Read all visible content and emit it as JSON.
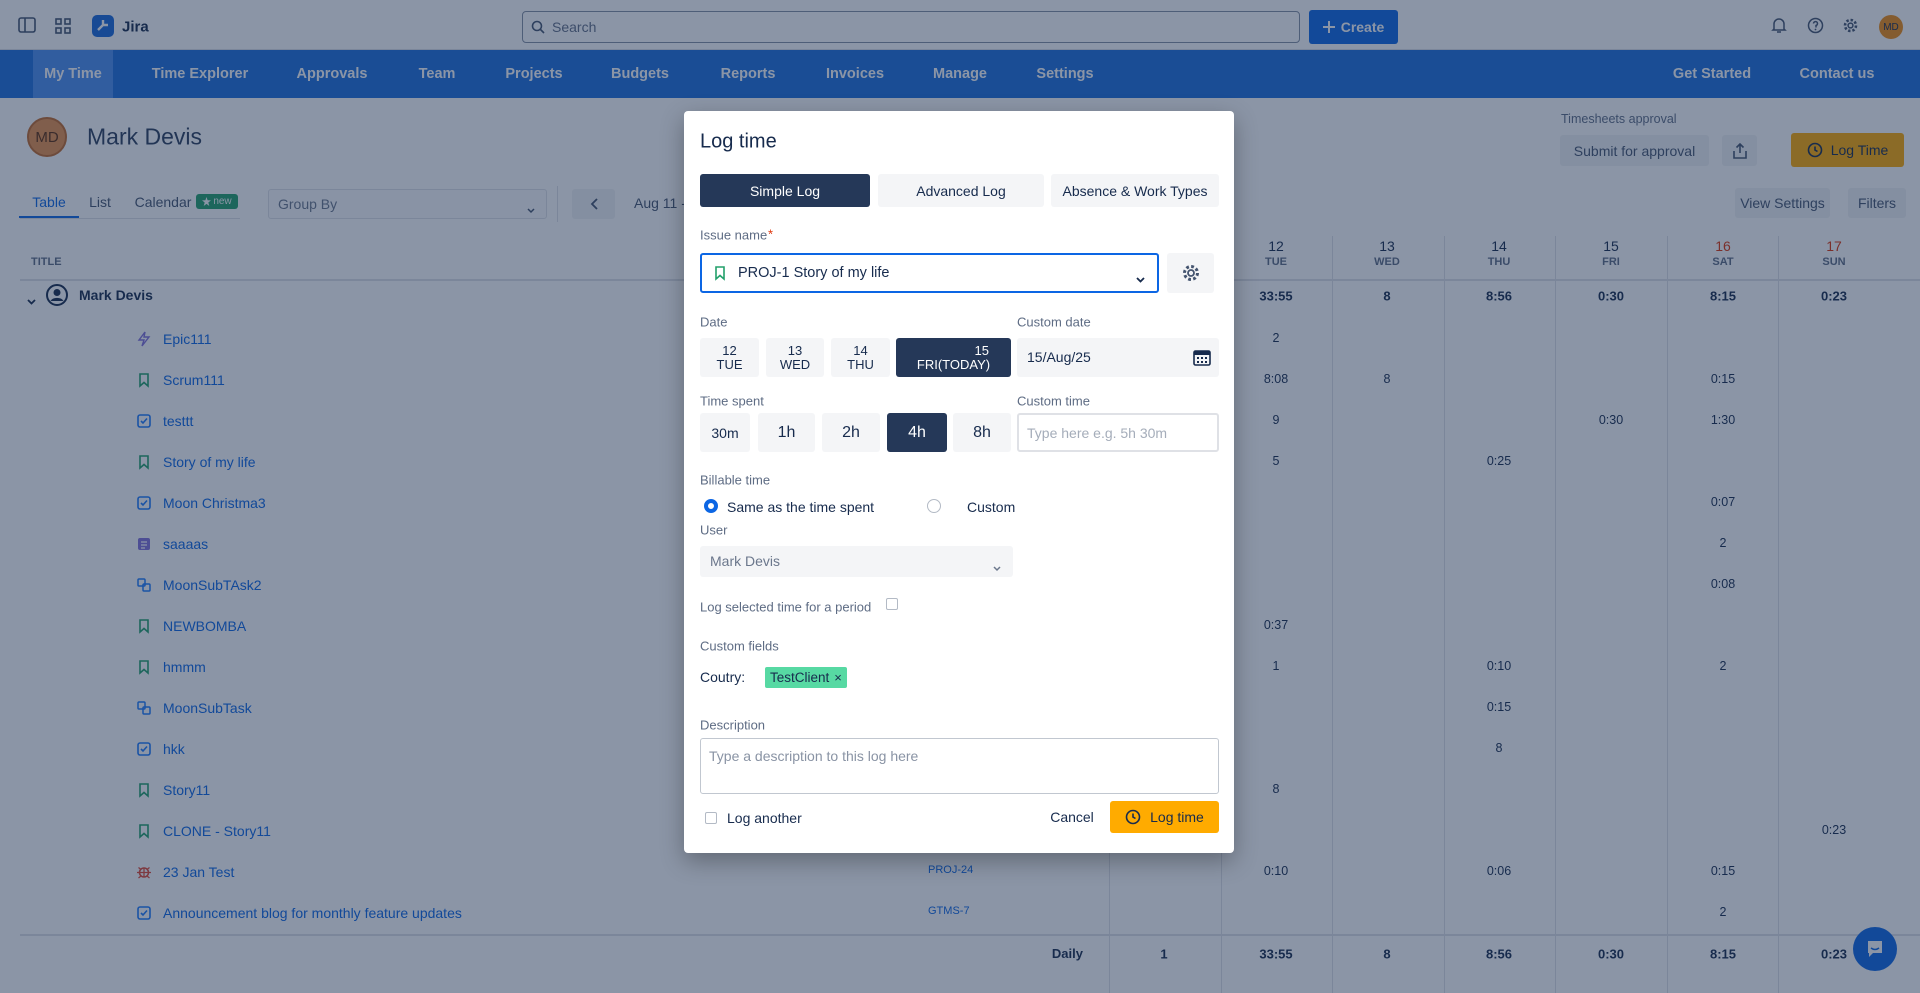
{
  "topbar": {
    "app_name": "Jira",
    "search_placeholder": "Search",
    "create_button": "Create",
    "avatar": "MD"
  },
  "nav": {
    "items": [
      "My Time",
      "Time Explorer",
      "Approvals",
      "Team",
      "Projects",
      "Budgets",
      "Reports",
      "Invoices",
      "Manage",
      "Settings"
    ],
    "active_item": 0,
    "right_items": [
      "Get Started",
      "Contact us"
    ]
  },
  "header": {
    "avatar": "MD",
    "user_name": "Mark Devis",
    "approval_label": "Timesheets approval",
    "submit_button": "Submit for approval",
    "log_time_button": "Log Time"
  },
  "toolbar": {
    "tabs": [
      "Table",
      "List",
      "Calendar"
    ],
    "active_tab": 0,
    "badge": "new",
    "group_by": "Group By",
    "date_range": "Aug 11 -",
    "view_settings": "View Settings",
    "filters": "Filters"
  },
  "table": {
    "title_header": "TITLE",
    "days": [
      {
        "day": "12",
        "weekday": "TUE",
        "weekend": false
      },
      {
        "day": "13",
        "weekday": "WED",
        "weekend": false
      },
      {
        "day": "14",
        "weekday": "THU",
        "weekend": false
      },
      {
        "day": "15",
        "weekday": "FRI",
        "weekend": false
      },
      {
        "day": "16",
        "weekday": "SAT",
        "weekend": true
      },
      {
        "day": "17",
        "weekday": "SUN",
        "weekend": true
      }
    ],
    "user_row": {
      "name": "Mark Devis",
      "cells": [
        null,
        "33:55",
        "8",
        "8:56",
        "0:30",
        "8:15",
        "0:23"
      ]
    },
    "rows": [
      {
        "title": "Epic111",
        "icon": "epic",
        "key": null,
        "cells": [
          null,
          "2",
          null,
          null,
          null,
          null,
          null
        ]
      },
      {
        "title": "Scrum111",
        "icon": "story",
        "key": null,
        "cells": [
          null,
          "8:08",
          "8",
          null,
          null,
          "0:15",
          null
        ]
      },
      {
        "title": "testtt",
        "icon": "task",
        "key": null,
        "cells": [
          null,
          "9",
          null,
          null,
          "0:30",
          "1:30",
          null
        ]
      },
      {
        "title": "Story of my life",
        "icon": "story",
        "key": null,
        "cells": [
          null,
          "5",
          null,
          "0:25",
          null,
          null,
          null
        ]
      },
      {
        "title": "Moon Christma3",
        "icon": "task",
        "key": null,
        "cells": [
          null,
          null,
          null,
          null,
          null,
          "0:07",
          null
        ]
      },
      {
        "title": "saaaas",
        "icon": "page",
        "key": null,
        "cells": [
          null,
          null,
          null,
          null,
          null,
          "2",
          null
        ]
      },
      {
        "title": "MoonSubTAsk2",
        "icon": "subtask",
        "key": null,
        "cells": [
          null,
          null,
          null,
          null,
          null,
          "0:08",
          null
        ]
      },
      {
        "title": "NEWBOMBA",
        "icon": "story",
        "key": null,
        "cells": [
          null,
          "0:37",
          null,
          null,
          null,
          null,
          null
        ]
      },
      {
        "title": "hmmm",
        "icon": "story",
        "key": null,
        "cells": [
          null,
          "1",
          null,
          "0:10",
          null,
          "2",
          null
        ]
      },
      {
        "title": "MoonSubTask",
        "icon": "subtask",
        "key": null,
        "cells": [
          null,
          null,
          null,
          "0:15",
          null,
          null,
          null
        ]
      },
      {
        "title": "hkk",
        "icon": "task",
        "key": null,
        "cells": [
          null,
          null,
          null,
          "8",
          null,
          null,
          null
        ]
      },
      {
        "title": "Story11",
        "icon": "story",
        "key": null,
        "cells": [
          null,
          "8",
          null,
          null,
          null,
          null,
          null
        ]
      },
      {
        "title": "CLONE - Story11",
        "icon": "story",
        "key": null,
        "cells": [
          null,
          null,
          null,
          null,
          null,
          null,
          "0:23"
        ]
      },
      {
        "title": "23 Jan Test",
        "icon": "bug",
        "key": "PROJ-24",
        "cells": [
          null,
          "0:10",
          null,
          "0:06",
          null,
          "0:15",
          null
        ]
      },
      {
        "title": "Announcement blog for monthly feature updates",
        "icon": "task",
        "key": "GTMS-7",
        "cells": [
          null,
          null,
          null,
          null,
          null,
          "2",
          null
        ]
      }
    ],
    "footer": {
      "label": "Daily",
      "cells": [
        "1",
        "33:55",
        "8",
        "8:56",
        "0:30",
        "8:15",
        "0:23"
      ]
    }
  },
  "modal": {
    "title": "Log time",
    "tabs": [
      "Simple Log",
      "Advanced Log",
      "Absence & Work Types"
    ],
    "active_tab": 0,
    "issue_label": "Issue name",
    "required_mark": "*",
    "issue_value": "PROJ-1 Story of my life",
    "date_label": "Date",
    "dates": [
      {
        "day": "12",
        "weekday": "TUE"
      },
      {
        "day": "13",
        "weekday": "WED"
      },
      {
        "day": "14",
        "weekday": "THU"
      },
      {
        "day": "15",
        "weekday": "FRI(TODAY)"
      }
    ],
    "active_date": 3,
    "custom_date_label": "Custom date",
    "custom_date_value": "15/Aug/25",
    "time_label": "Time spent",
    "durations": [
      "30m",
      "1h",
      "2h",
      "4h",
      "8h"
    ],
    "active_duration": 3,
    "custom_time_label": "Custom time",
    "custom_time_placeholder": "Type here e.g. 5h 30m",
    "billable_label": "Billable time",
    "billable_options": [
      "Same as the time spent",
      "Custom"
    ],
    "active_billable": 0,
    "user_label": "User",
    "user_value": "Mark Devis",
    "period_label": "Log selected time for a period",
    "custom_fields_label": "Custom fields",
    "country_label": "Coutry:",
    "country_tag": "TestClient",
    "tag_remove": "×",
    "description_label": "Description",
    "description_placeholder": "Type a description to this log here",
    "log_another": "Log another",
    "cancel": "Cancel",
    "submit": "Log time"
  }
}
